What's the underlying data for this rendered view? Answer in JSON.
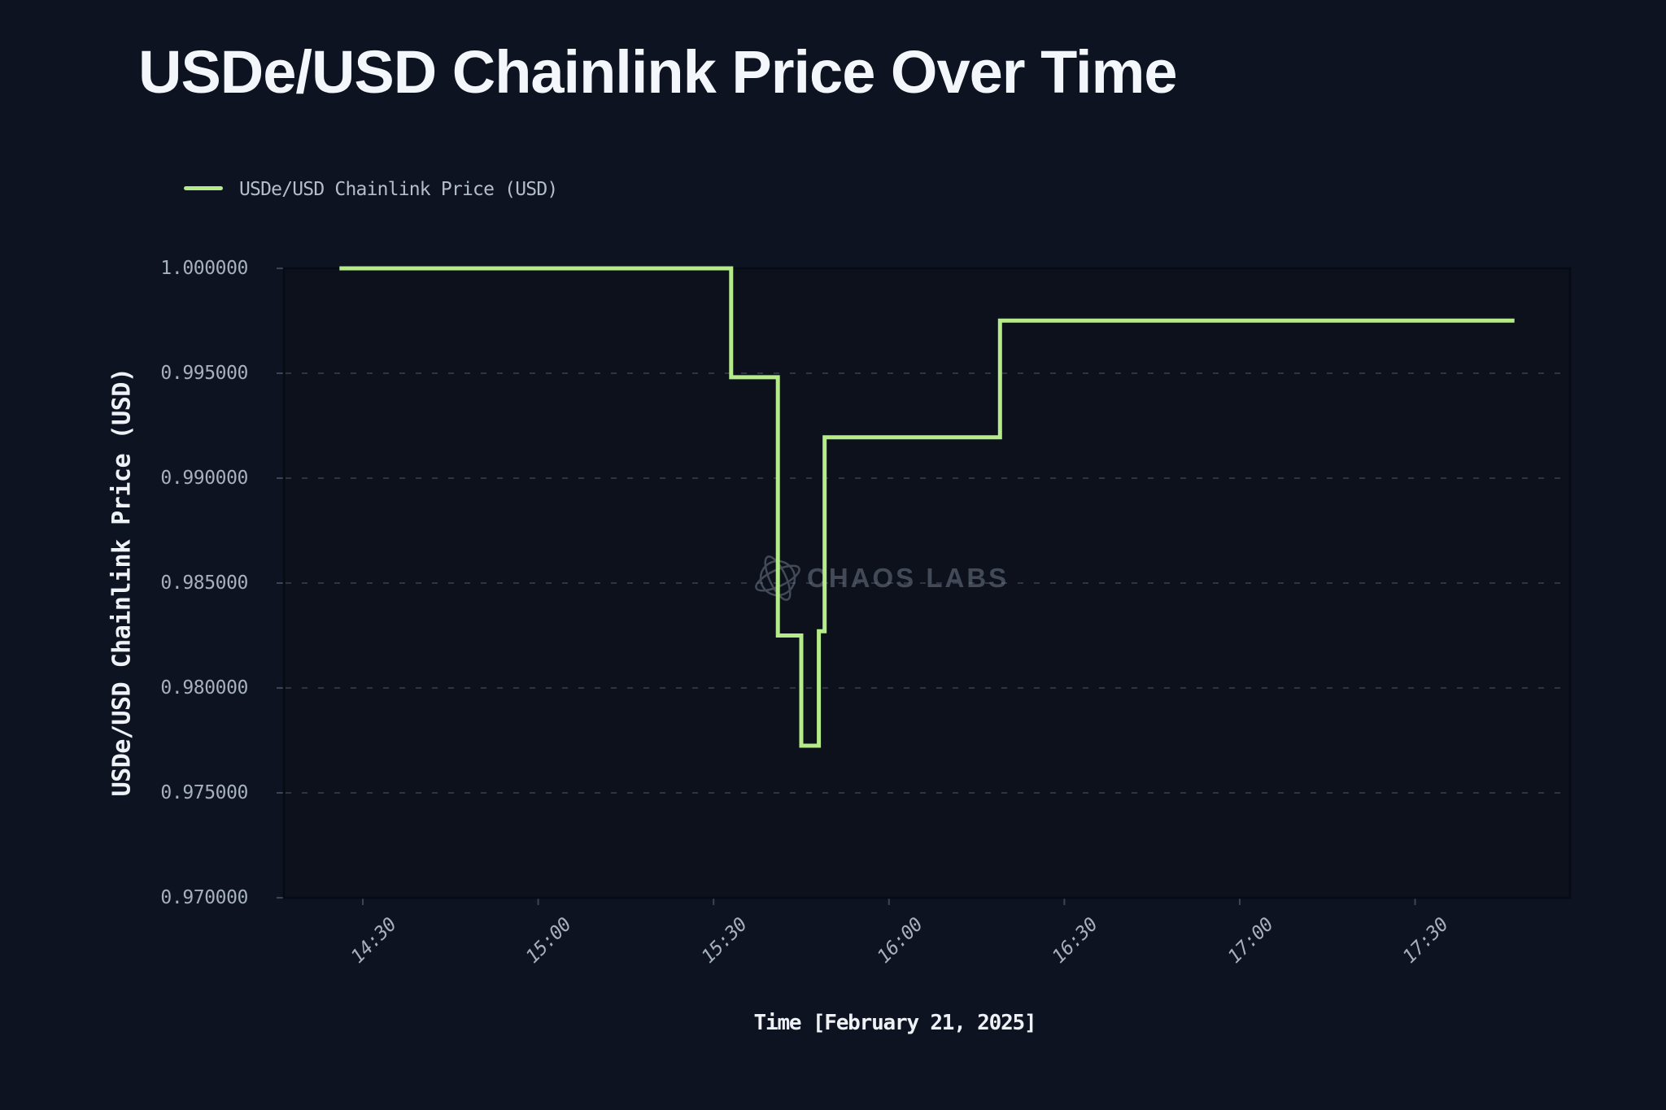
{
  "title": "USDe/USD Chainlink Price Over Time",
  "legend": {
    "label": "USDe/USD Chainlink Price (USD)"
  },
  "watermark": {
    "text": "CHAOS LABS"
  },
  "colors": {
    "background": "#0d1321",
    "plot_background": "#0c111c",
    "line": "#b6eb8a",
    "grid": "#4a5263",
    "spine": "#070b15",
    "tick_mark": "#3d4554",
    "tick_label": "#a6b0bf",
    "axis_label": "#eef1f6",
    "title": "#f3f6fa",
    "watermark": "#7a8492"
  },
  "chart_data": {
    "type": "line",
    "step": "post",
    "title": "USDe/USD Chainlink Price Over Time",
    "xlabel": "Time [February 21, 2025]",
    "ylabel": "USDe/USD Chainlink Price (USD)",
    "legend": [
      "USDe/USD Chainlink Price (USD)"
    ],
    "date": "February 21, 2025",
    "grid": "horizontal dashed",
    "legend_position": "top-left",
    "ylim": [
      0.97,
      1.0
    ],
    "xlim_minutes": [
      856.5,
      1076.5
    ],
    "x_ticks": [
      {
        "label": "14:30",
        "minutes": 870
      },
      {
        "label": "15:00",
        "minutes": 900
      },
      {
        "label": "15:30",
        "minutes": 930
      },
      {
        "label": "16:00",
        "minutes": 960
      },
      {
        "label": "16:30",
        "minutes": 990
      },
      {
        "label": "17:00",
        "minutes": 1020
      },
      {
        "label": "17:30",
        "minutes": 1050
      }
    ],
    "y_ticks": [
      {
        "label": "1.000000",
        "value": 1.0,
        "gridline": false
      },
      {
        "label": "0.995000",
        "value": 0.995,
        "gridline": true
      },
      {
        "label": "0.990000",
        "value": 0.99,
        "gridline": true
      },
      {
        "label": "0.985000",
        "value": 0.985,
        "gridline": true
      },
      {
        "label": "0.980000",
        "value": 0.98,
        "gridline": true
      },
      {
        "label": "0.975000",
        "value": 0.975,
        "gridline": true
      },
      {
        "label": "0.970000",
        "value": 0.97,
        "gridline": false
      }
    ],
    "series": [
      {
        "name": "USDe/USD Chainlink Price (USD)",
        "color": "#b6eb8a",
        "points": [
          {
            "time": "14:26",
            "minutes": 866,
            "value": 1.0
          },
          {
            "time": "15:33",
            "minutes": 933,
            "value": 0.99481
          },
          {
            "time": "15:41",
            "minutes": 941,
            "value": 0.9825
          },
          {
            "time": "15:45",
            "minutes": 945,
            "value": 0.97725
          },
          {
            "time": "15:48",
            "minutes": 948,
            "value": 0.9827
          },
          {
            "time": "15:49",
            "minutes": 949,
            "value": 0.99195
          },
          {
            "time": "16:19",
            "minutes": 979,
            "value": 0.99751
          },
          {
            "time": "17:47",
            "minutes": 1067,
            "value": 0.99751
          }
        ]
      }
    ]
  }
}
